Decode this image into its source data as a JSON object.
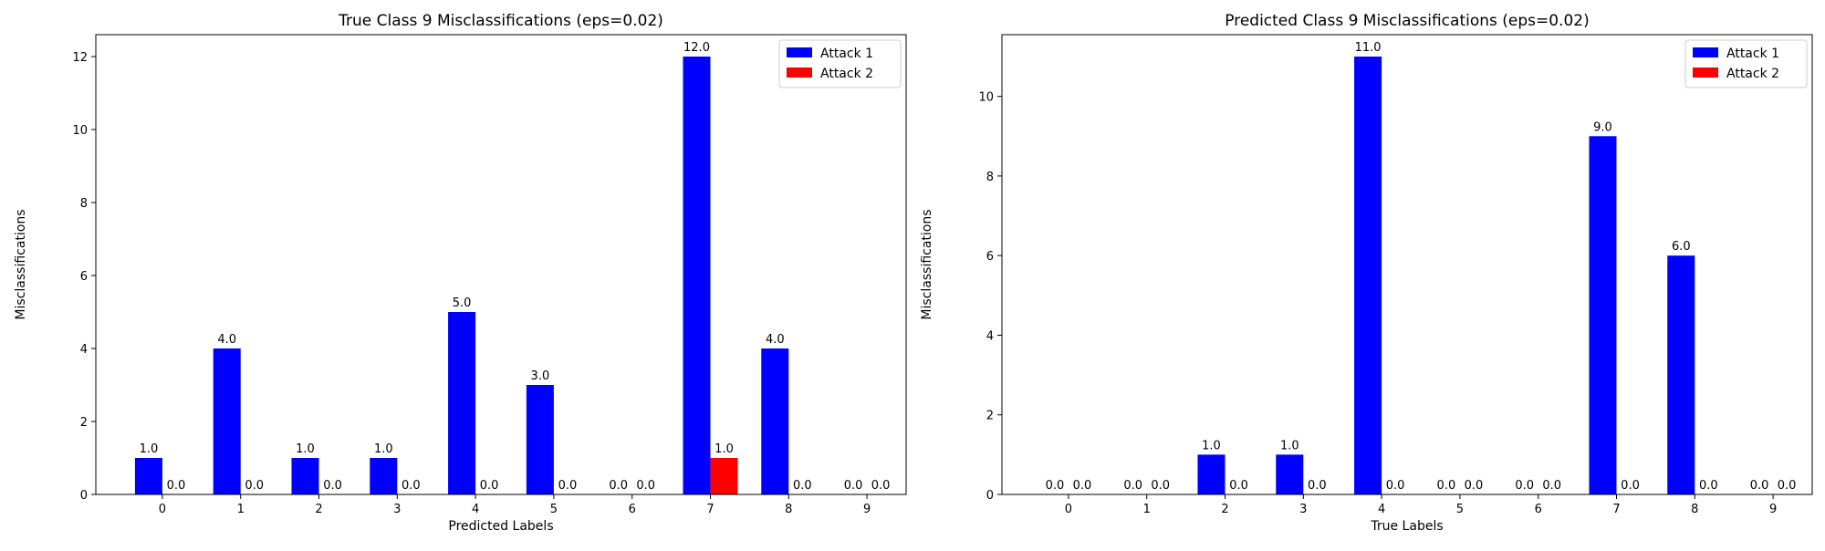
{
  "chart_data": [
    {
      "type": "bar",
      "title": "True Class 9 Misclassifications (eps=0.02)",
      "xlabel": "Predicted Labels",
      "ylabel": "Misclassifications",
      "categories": [
        "0",
        "1",
        "2",
        "3",
        "4",
        "5",
        "6",
        "7",
        "8",
        "9"
      ],
      "series": [
        {
          "name": "Attack 1",
          "color": "#0000ff",
          "values": [
            1,
            4,
            1,
            1,
            5,
            3,
            0,
            12,
            4,
            0
          ]
        },
        {
          "name": "Attack 2",
          "color": "#ff0000",
          "values": [
            0,
            0,
            0,
            0,
            0,
            0,
            0,
            1,
            0,
            0
          ]
        }
      ],
      "ylim": [
        0,
        12.6
      ],
      "yticks": [
        0,
        2,
        4,
        6,
        8,
        10,
        12
      ],
      "legend": "top-right",
      "grid": false
    },
    {
      "type": "bar",
      "title": "Predicted Class 9 Misclassifications (eps=0.02)",
      "xlabel": "True Labels",
      "ylabel": "Misclassifications",
      "categories": [
        "0",
        "1",
        "2",
        "3",
        "4",
        "5",
        "6",
        "7",
        "8",
        "9"
      ],
      "series": [
        {
          "name": "Attack 1",
          "color": "#0000ff",
          "values": [
            0,
            0,
            1,
            1,
            11,
            0,
            0,
            9,
            6,
            0
          ]
        },
        {
          "name": "Attack 2",
          "color": "#ff0000",
          "values": [
            0,
            0,
            0,
            0,
            0,
            0,
            0,
            0,
            0,
            0
          ]
        }
      ],
      "ylim": [
        0,
        11.55
      ],
      "yticks": [
        0,
        2,
        4,
        6,
        8,
        10
      ],
      "legend": "top-right",
      "grid": false
    }
  ]
}
